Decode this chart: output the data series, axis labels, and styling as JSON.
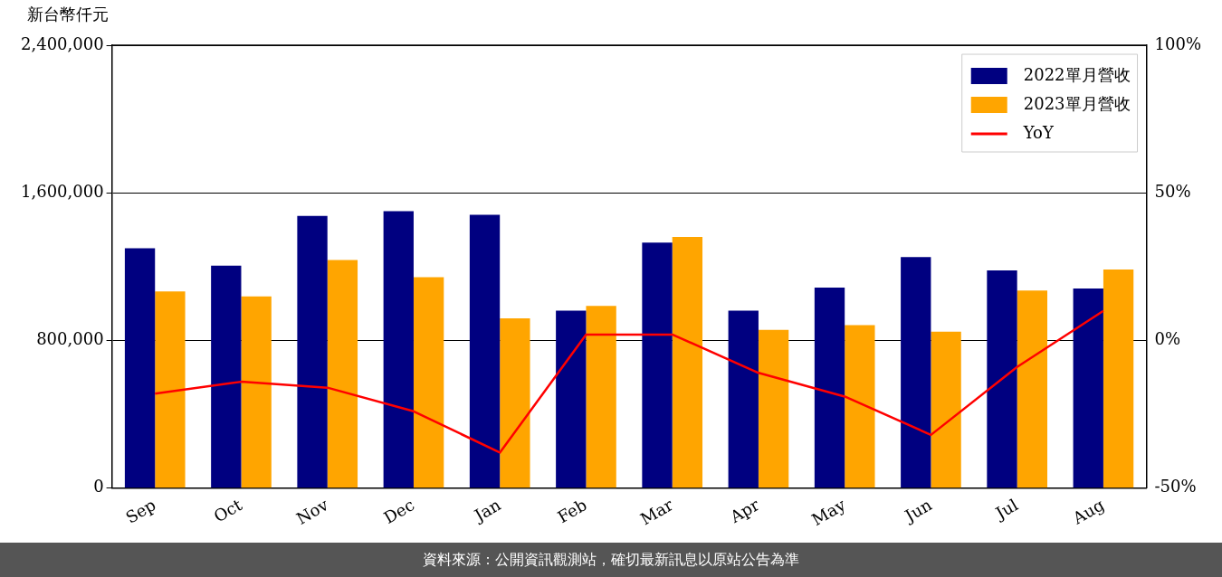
{
  "chart_data": {
    "type": "bar",
    "ylabel": "新台幣仟元",
    "categories": [
      "Sep",
      "Oct",
      "Nov",
      "Dec",
      "Jan",
      "Feb",
      "Mar",
      "Apr",
      "May",
      "Jun",
      "Jul",
      "Aug"
    ],
    "series": [
      {
        "name": "2022單月營收",
        "color": "#000080",
        "values": [
          1299000,
          1205000,
          1475000,
          1501000,
          1481000,
          961000,
          1330000,
          961000,
          1086000,
          1252000,
          1179000,
          1081000
        ]
      },
      {
        "name": "2023單月營收",
        "color": "#ffa500",
        "values": [
          1065000,
          1039000,
          1236000,
          1143000,
          920000,
          987000,
          1361000,
          857000,
          883000,
          847000,
          1070000,
          1184000
        ]
      },
      {
        "name": "YoY",
        "color": "#ff0000",
        "type": "line",
        "axis": "y2",
        "values": [
          -18,
          -14,
          -16,
          -24,
          -38,
          2,
          2,
          -11,
          -19,
          -32,
          -9,
          10
        ]
      }
    ],
    "ylim": [
      0,
      2400000
    ],
    "yticks": [
      {
        "value": 0,
        "label": "0"
      },
      {
        "value": 800000,
        "label": "800,000"
      },
      {
        "value": 1600000,
        "label": "1,600,000"
      },
      {
        "value": 2400000,
        "label": "2,400,000"
      }
    ],
    "y2lim": [
      -50,
      100
    ],
    "y2ticks": [
      {
        "value": -50,
        "label": "-50%"
      },
      {
        "value": 0,
        "label": "0%"
      },
      {
        "value": 50,
        "label": "50%"
      },
      {
        "value": 100,
        "label": "100%"
      }
    ],
    "grid": "y",
    "legend": "top right",
    "marker": "none",
    "line_style": "solid",
    "annotations": [
      "資料來源：公開資訊觀測站，確切最新訊息以原站公告為準"
    ]
  }
}
